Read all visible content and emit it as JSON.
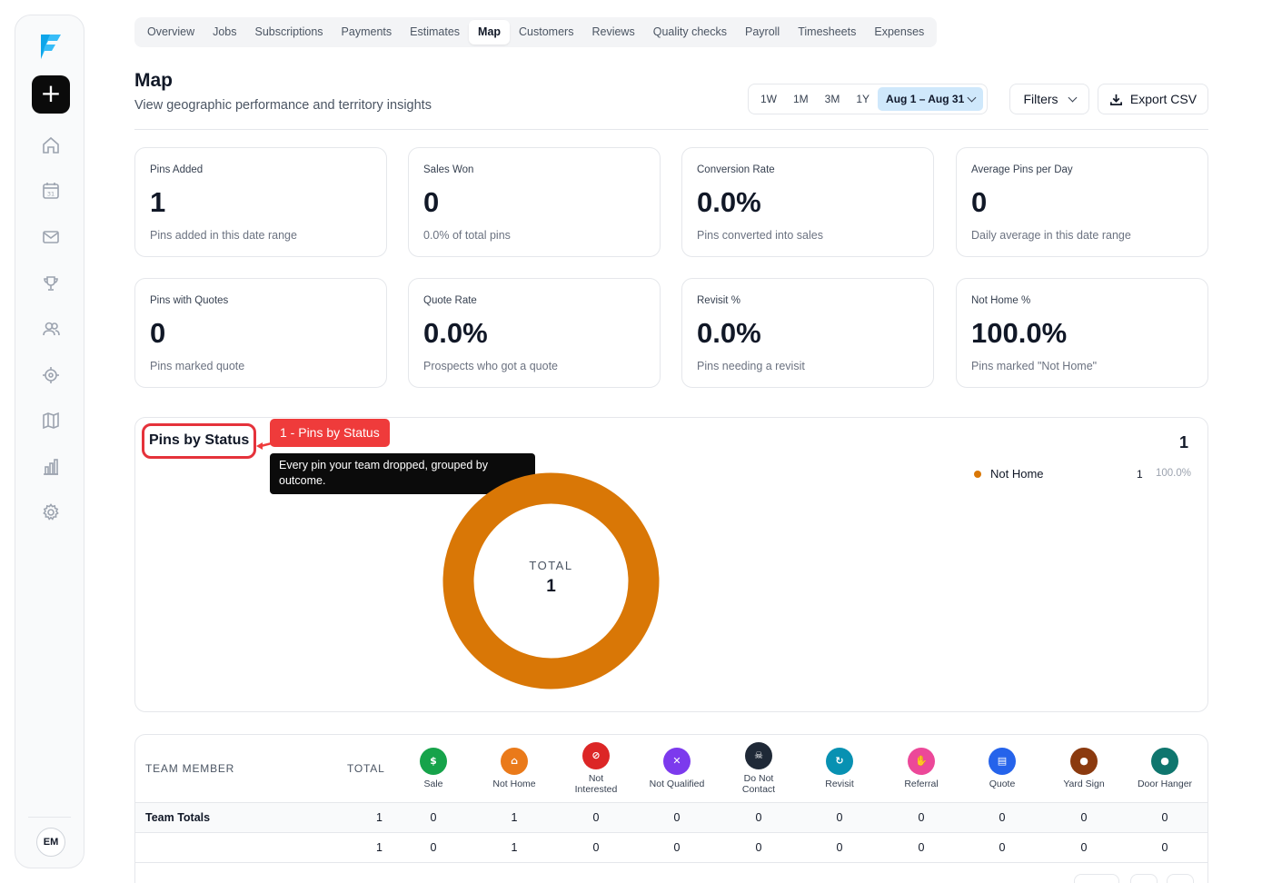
{
  "sidebar": {
    "nav_icons": [
      "home-icon",
      "calendar-icon",
      "mail-icon",
      "trophy-icon",
      "users-icon",
      "crosshair-icon",
      "map-icon",
      "bar-chart-icon",
      "gear-icon"
    ],
    "add_label": "+",
    "calendar_day": "31",
    "avatar_initials": "EM"
  },
  "tabs": [
    {
      "label": "Overview"
    },
    {
      "label": "Jobs"
    },
    {
      "label": "Subscriptions"
    },
    {
      "label": "Payments"
    },
    {
      "label": "Estimates"
    },
    {
      "label": "Map",
      "active": true
    },
    {
      "label": "Customers"
    },
    {
      "label": "Reviews"
    },
    {
      "label": "Quality checks"
    },
    {
      "label": "Payroll"
    },
    {
      "label": "Timesheets"
    },
    {
      "label": "Expenses"
    }
  ],
  "header": {
    "title": "Map",
    "subtitle": "View geographic performance and territory insights",
    "ranges": [
      "1W",
      "1M",
      "3M",
      "1Y"
    ],
    "date_range": "Aug 1 – Aug 31",
    "filters_label": "Filters",
    "export_label": "Export CSV"
  },
  "cards": [
    {
      "label": "Pins Added",
      "value": "1",
      "desc": "Pins added in this date range"
    },
    {
      "label": "Sales Won",
      "value": "0",
      "desc": "0.0% of total pins"
    },
    {
      "label": "Conversion Rate",
      "value": "0.0%",
      "desc": "Pins converted into sales"
    },
    {
      "label": "Average Pins per Day",
      "value": "0",
      "desc": "Daily average in this date range"
    },
    {
      "label": "Pins with Quotes",
      "value": "0",
      "desc": "Pins marked quote"
    },
    {
      "label": "Quote Rate",
      "value": "0.0%",
      "desc": "Prospects who got a quote"
    },
    {
      "label": "Revisit %",
      "value": "0.0%",
      "desc": "Pins needing a revisit"
    },
    {
      "label": "Not Home %",
      "value": "100.0%",
      "desc": "Pins marked \"Not Home\""
    }
  ],
  "pins_panel": {
    "title": "Pins by Status",
    "callout": "1 - Pins by Status",
    "tooltip": "Every pin your team dropped, grouped by outcome.",
    "count": "1",
    "donut_label": "TOTAL",
    "donut_total": "1",
    "legend": [
      {
        "name": "Not Home",
        "count": "1",
        "pct": "100.0%",
        "color": "#d97706"
      }
    ]
  },
  "chart_data": {
    "type": "pie",
    "categories": [
      "Not Home"
    ],
    "values": [
      1
    ],
    "title": "Pins by Status"
  },
  "team_table": {
    "headers": {
      "team": "TEAM MEMBER",
      "total": "TOTAL"
    },
    "statuses": [
      {
        "label": "Sale",
        "color": "#16a34a",
        "glyph": "$"
      },
      {
        "label": "Not Home",
        "color": "#ea7a1a",
        "glyph": "⌂"
      },
      {
        "label": "Not Interested",
        "color": "#dc2626",
        "glyph": "⊘"
      },
      {
        "label": "Not Qualified",
        "color": "#7c3aed",
        "glyph": "✕"
      },
      {
        "label": "Do Not Contact",
        "color": "#1f2937",
        "glyph": "☠"
      },
      {
        "label": "Revisit",
        "color": "#0891b2",
        "glyph": "↻"
      },
      {
        "label": "Referral",
        "color": "#ec4899",
        "glyph": "✋"
      },
      {
        "label": "Quote",
        "color": "#2563eb",
        "glyph": "▤"
      },
      {
        "label": "Yard Sign",
        "color": "#8b3a0f",
        "glyph": "●"
      },
      {
        "label": "Door Hanger",
        "color": "#0f766e",
        "glyph": "●"
      }
    ],
    "rows": [
      {
        "name": "Team Totals",
        "total": "1",
        "values": [
          "0",
          "1",
          "0",
          "0",
          "0",
          "0",
          "0",
          "0",
          "0",
          "0"
        ]
      },
      {
        "name": "",
        "total": "1",
        "values": [
          "0",
          "1",
          "0",
          "0",
          "0",
          "0",
          "0",
          "0",
          "0",
          "0"
        ]
      }
    ]
  }
}
